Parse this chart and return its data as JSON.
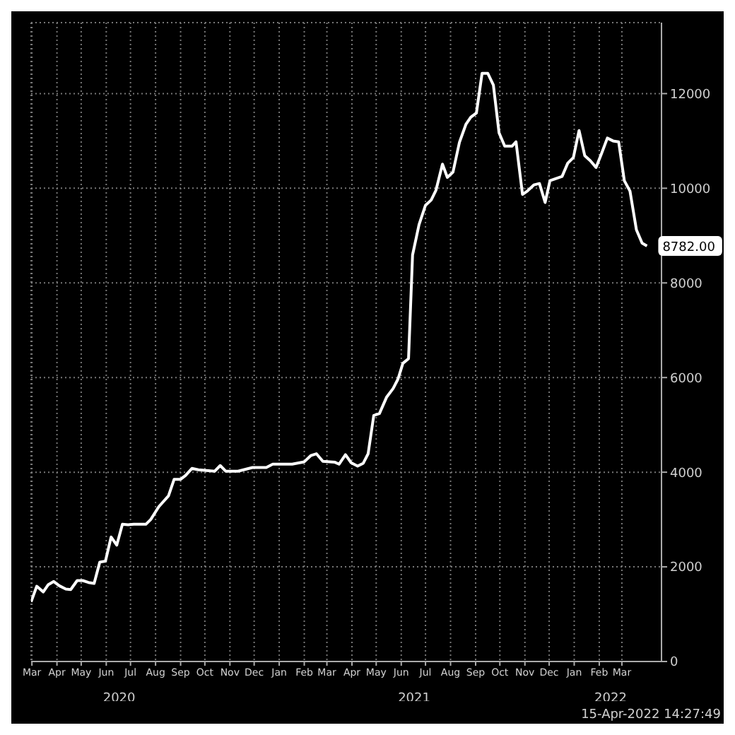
{
  "chart_data": {
    "type": "line",
    "x": [
      "2020-03-14",
      "2020-03-21",
      "2020-03-29",
      "2020-04-04",
      "2020-04-11",
      "2020-04-18",
      "2020-04-26",
      "2020-05-02",
      "2020-05-10",
      "2020-05-17",
      "2020-05-24",
      "2020-05-31",
      "2020-06-07",
      "2020-06-14",
      "2020-06-21",
      "2020-06-28",
      "2020-07-05",
      "2020-07-12",
      "2020-07-19",
      "2020-08-03",
      "2020-08-09",
      "2020-08-19",
      "2020-08-31",
      "2020-09-07",
      "2020-09-15",
      "2020-09-21",
      "2020-09-29",
      "2020-10-07",
      "2020-10-27",
      "2020-11-03",
      "2020-11-10",
      "2020-11-25",
      "2020-12-13",
      "2020-12-30",
      "2021-01-07",
      "2021-01-31",
      "2021-02-15",
      "2021-02-23",
      "2021-03-02",
      "2021-03-10",
      "2021-03-25",
      "2021-03-30",
      "2021-04-07",
      "2021-04-14",
      "2021-04-22",
      "2021-04-29",
      "2021-05-05",
      "2021-05-12",
      "2021-05-19",
      "2021-05-28",
      "2021-06-05",
      "2021-06-11",
      "2021-06-17",
      "2021-06-24",
      "2021-06-29",
      "2021-07-07",
      "2021-07-15",
      "2021-07-22",
      "2021-07-28",
      "2021-08-05",
      "2021-08-11",
      "2021-08-18",
      "2021-08-26",
      "2021-09-03",
      "2021-09-09",
      "2021-09-16",
      "2021-09-23",
      "2021-09-30",
      "2021-10-07",
      "2021-10-14",
      "2021-10-21",
      "2021-10-30",
      "2021-11-04",
      "2021-11-12",
      "2021-11-18",
      "2021-11-26",
      "2021-12-03",
      "2021-12-10",
      "2021-12-16",
      "2021-12-31",
      "2022-01-07",
      "2022-01-14",
      "2022-01-21",
      "2022-01-28",
      "2022-02-04",
      "2022-02-11",
      "2022-02-18",
      "2022-02-25",
      "2022-03-04",
      "2022-03-11",
      "2022-03-18",
      "2022-03-25",
      "2022-04-02",
      "2022-04-09",
      "2022-04-15"
    ],
    "series": [
      {
        "color": "#ffffff",
        "values": [
          1260,
          1590,
          1470,
          1620,
          1690,
          1600,
          1530,
          1520,
          1710,
          1710,
          1670,
          1650,
          2100,
          2120,
          2630,
          2460,
          2900,
          2890,
          2900,
          2900,
          3000,
          3270,
          3500,
          3850,
          3850,
          3930,
          4080,
          4050,
          4020,
          4140,
          4020,
          4020,
          4100,
          4100,
          4170,
          4170,
          4220,
          4350,
          4390,
          4230,
          4210,
          4170,
          4370,
          4200,
          4130,
          4190,
          4390,
          5200,
          5240,
          5590,
          5770,
          5970,
          6300,
          6400,
          8590,
          9230,
          9640,
          9750,
          9960,
          10510,
          10230,
          10340,
          10970,
          11350,
          11500,
          11590,
          12430,
          12430,
          12180,
          11170,
          10890,
          10890,
          10980,
          9870,
          9940,
          10070,
          10100,
          9700,
          10160,
          10250,
          10530,
          10650,
          11220,
          10690,
          10580,
          10440,
          10740,
          11060,
          11000,
          10980,
          10160,
          9940,
          9120,
          8840,
          8782
        ]
      }
    ],
    "xlim": [
      "2020-03-14",
      "2022-05-03"
    ],
    "xticks": [
      {
        "value": "2020-03-15",
        "label": "Mar"
      },
      {
        "value": "2020-04-15",
        "label": "Apr"
      },
      {
        "value": "2020-05-15",
        "label": "May"
      },
      {
        "value": "2020-06-15",
        "label": "Jun"
      },
      {
        "value": "2020-07-15",
        "label": "Jul"
      },
      {
        "value": "2020-08-15",
        "label": "Aug"
      },
      {
        "value": "2020-09-15",
        "label": "Sep"
      },
      {
        "value": "2020-10-15",
        "label": "Oct"
      },
      {
        "value": "2020-11-15",
        "label": "Nov"
      },
      {
        "value": "2020-12-15",
        "label": "Dec"
      },
      {
        "value": "2021-01-15",
        "label": "Jan"
      },
      {
        "value": "2021-02-15",
        "label": "Feb"
      },
      {
        "value": "2021-03-15",
        "label": "Mar"
      },
      {
        "value": "2021-04-15",
        "label": "Apr"
      },
      {
        "value": "2021-05-15",
        "label": "May"
      },
      {
        "value": "2021-06-15",
        "label": "Jun"
      },
      {
        "value": "2021-07-15",
        "label": "Jul"
      },
      {
        "value": "2021-08-15",
        "label": "Aug"
      },
      {
        "value": "2021-09-15",
        "label": "Sep"
      },
      {
        "value": "2021-10-15",
        "label": "Oct"
      },
      {
        "value": "2021-11-15",
        "label": "Nov"
      },
      {
        "value": "2021-12-15",
        "label": "Dec"
      },
      {
        "value": "2022-01-15",
        "label": "Jan"
      },
      {
        "value": "2022-02-15",
        "label": "Feb"
      },
      {
        "value": "2022-03-15",
        "label": "Mar"
      }
    ],
    "x2lim": [
      "2020-03-14",
      "2022-05-03"
    ],
    "x2ticks": [
      {
        "value": "2020-07-01",
        "label": "2020"
      },
      {
        "value": "2021-07-01",
        "label": "2021"
      },
      {
        "value": "2022-03-01",
        "label": "2022"
      }
    ],
    "ylim": [
      0,
      13500
    ],
    "yticks": [
      0,
      2000,
      4000,
      6000,
      8000,
      10000,
      12000
    ],
    "grid": true,
    "marker": "none",
    "line_style": "solid",
    "annotations": [
      {
        "text": "8782.00",
        "x": "2022-04-15",
        "y": 8782
      },
      "15-Apr-2022 14:27:49"
    ]
  }
}
